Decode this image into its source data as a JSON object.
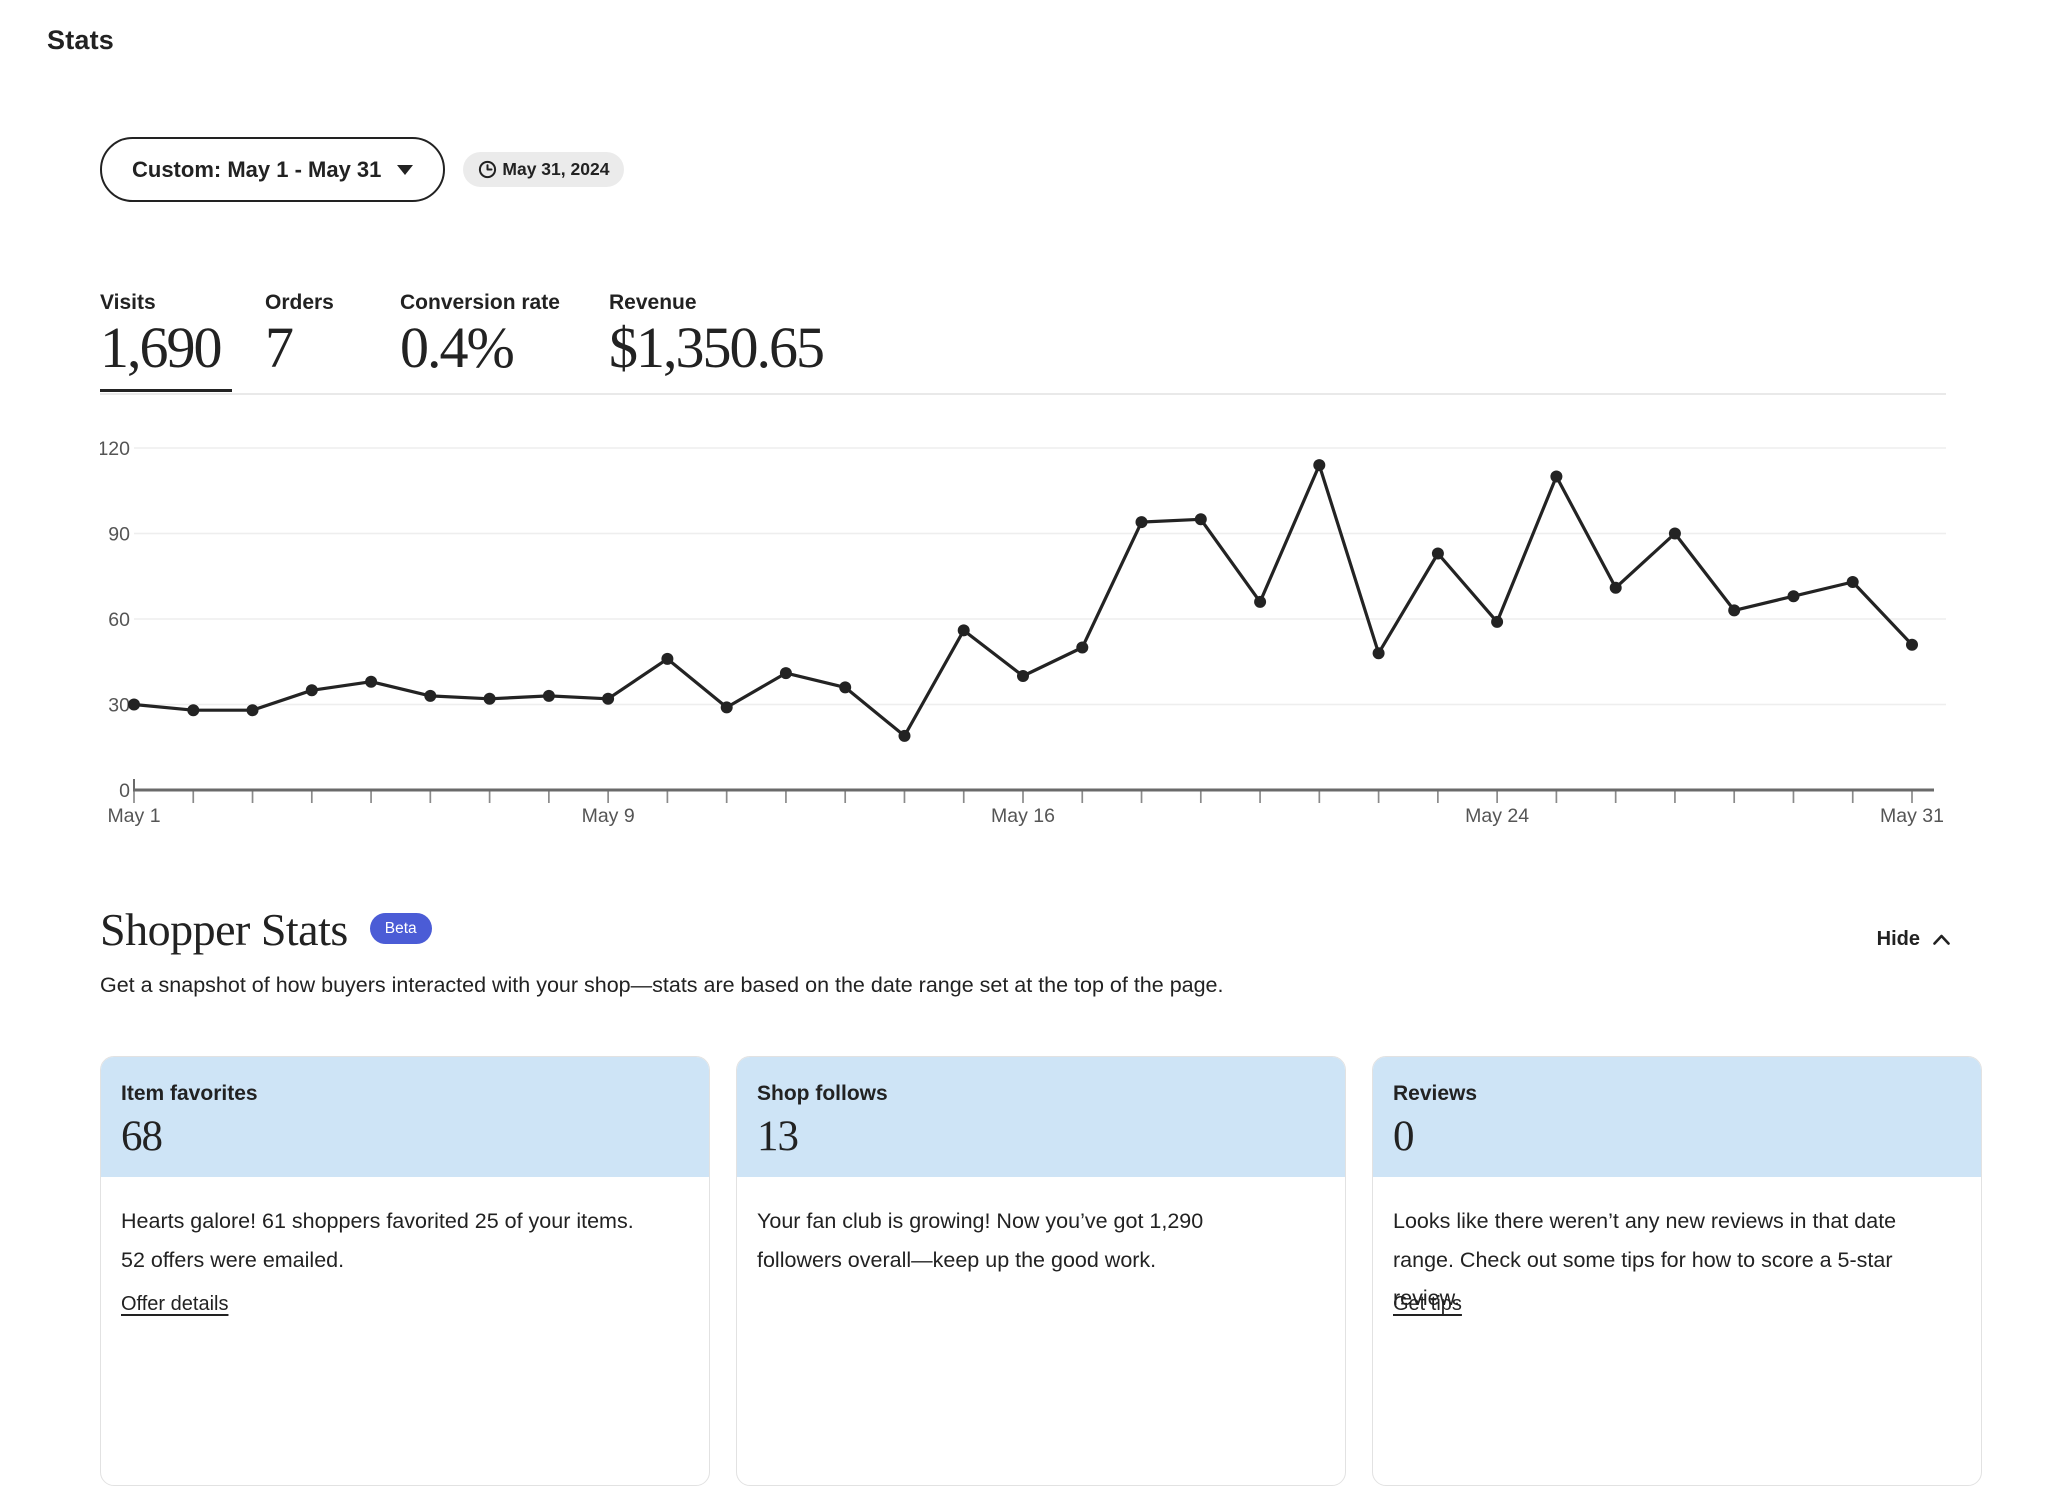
{
  "page": {
    "title": "Stats"
  },
  "toolbar": {
    "date_range_label": "Custom: May 1 - May 31",
    "date_badge": "May 31, 2024",
    "clock_icon": "clock-icon",
    "caret_icon": "chevron-down-icon"
  },
  "metrics": {
    "tabs": [
      {
        "label": "Visits",
        "value": "1,690",
        "selected": true
      },
      {
        "label": "Orders",
        "value": "7",
        "selected": false
      },
      {
        "label": "Conversion rate",
        "value": "0.4%",
        "selected": false
      },
      {
        "label": "Revenue",
        "value": "$1,350.65",
        "selected": false
      }
    ]
  },
  "chart_data": {
    "type": "line",
    "series_name": "Visits",
    "categories": [
      "May 1",
      "May 2",
      "May 3",
      "May 4",
      "May 5",
      "May 6",
      "May 7",
      "May 8",
      "May 9",
      "May 10",
      "May 11",
      "May 12",
      "May 13",
      "May 14",
      "May 15",
      "May 16",
      "May 17",
      "May 18",
      "May 19",
      "May 20",
      "May 21",
      "May 22",
      "May 23",
      "May 24",
      "May 25",
      "May 26",
      "May 27",
      "May 28",
      "May 29",
      "May 30",
      "May 31"
    ],
    "values": [
      30,
      28,
      28,
      35,
      38,
      33,
      32,
      33,
      32,
      46,
      29,
      41,
      36,
      19,
      56,
      40,
      50,
      94,
      95,
      66,
      114,
      48,
      83,
      59,
      110,
      71,
      90,
      63,
      68,
      73,
      51
    ],
    "ylim": [
      0,
      120
    ],
    "yticks": [
      0,
      30,
      60,
      90,
      120
    ],
    "xticks_shown": [
      {
        "index": 0,
        "label": "May 1"
      },
      {
        "index": 8,
        "label": "May 9"
      },
      {
        "index": 15,
        "label": "May 16"
      },
      {
        "index": 23,
        "label": "May 24"
      },
      {
        "index": 30,
        "label": "May 31"
      }
    ],
    "grid": true,
    "legend": "none",
    "line_color": "#232323"
  },
  "shopper": {
    "title": "Shopper Stats",
    "beta_label": "Beta",
    "hide_label": "Hide",
    "subtitle": "Get a snapshot of how buyers interacted with your shop—stats are based on the date range set at the top of the page.",
    "cards": [
      {
        "title": "Item favorites",
        "value": "68",
        "body": "Hearts galore! 61 shoppers favorited 25 of your items. 52 offers were emailed.",
        "link": "Offer details"
      },
      {
        "title": "Shop follows",
        "value": "13",
        "body": "Your fan club is growing! Now you’ve got 1,290 followers overall—keep up the good work.",
        "link": ""
      },
      {
        "title": "Reviews",
        "value": "0",
        "body": "Looks like there weren’t any new reviews in that date range. Check out some tips for how to score a 5-star review.",
        "link": "Get tips"
      }
    ]
  },
  "colors": {
    "accent_blue": "#4b5cd6",
    "card_header_blue": "#cee4f6",
    "line_color": "#232323",
    "grid_color": "#eeeeee",
    "axis_color": "#6a6a6a",
    "muted_text": "#555555",
    "badge_bg": "#ebebeb",
    "separator": "#e9e9e9",
    "card_border": "#e2e2e2"
  }
}
